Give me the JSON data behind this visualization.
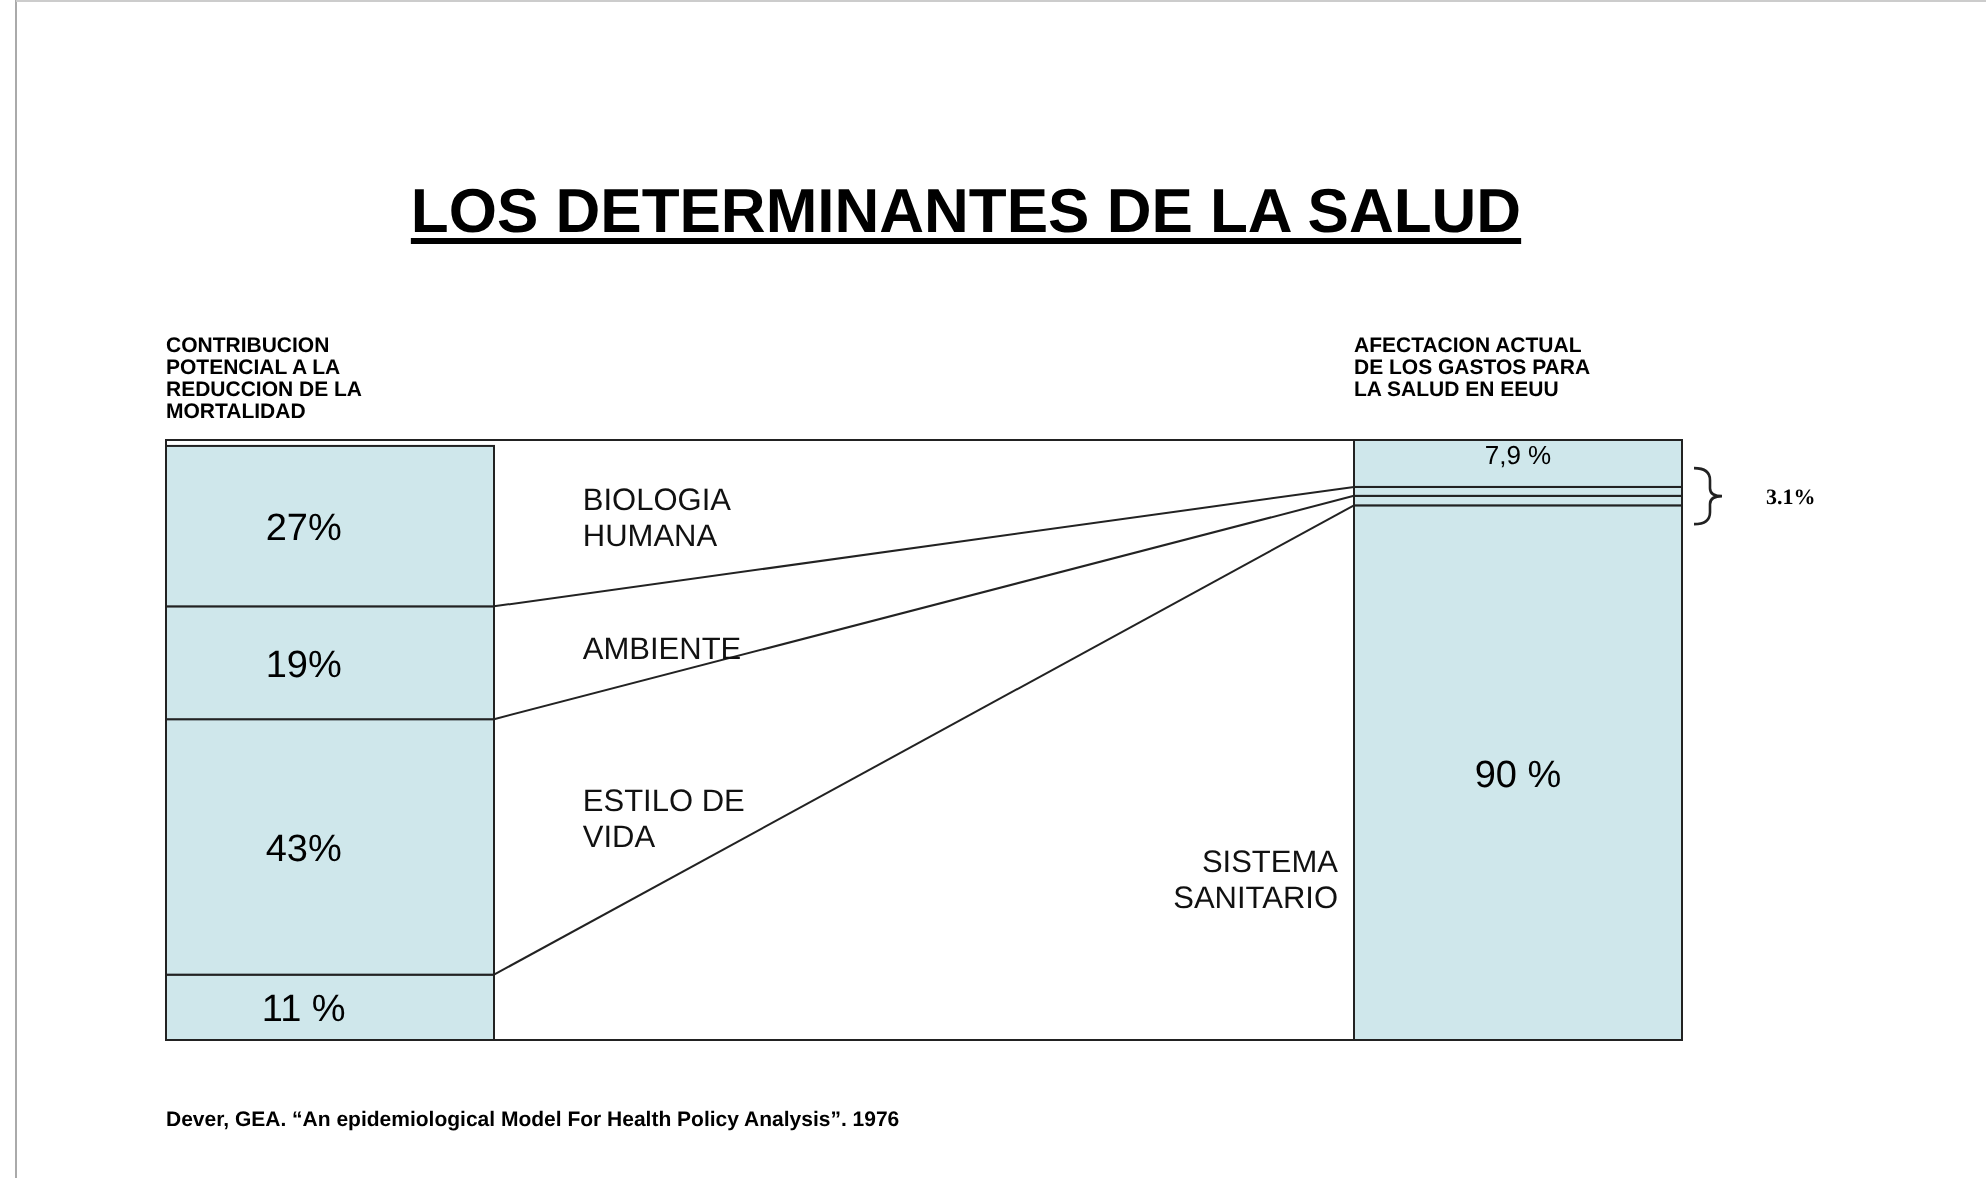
{
  "chart_data": {
    "type": "bar",
    "stacked": true,
    "title": "LOS DETERMINANTES DE LA SALUD",
    "categories": [
      "CONTRIBUCION POTENCIAL A LA REDUCCION DE LA MORTALIDAD",
      "AFECTACION ACTUAL DE LOS GASTOS PARA LA SALUD EN EEUU"
    ],
    "series": [
      {
        "name": "SISTEMA SANITARIO",
        "color": "#cfe7eb",
        "values": [
          11,
          90
        ],
        "value_labels": [
          "11 %",
          "90 %"
        ]
      },
      {
        "name": "ESTILO DE VIDA",
        "color": "#cfe7eb",
        "values": [
          43,
          1.6
        ],
        "value_labels": [
          "43%",
          null
        ]
      },
      {
        "name": "AMBIENTE",
        "color": "#cfe7eb",
        "values": [
          19,
          1.5
        ],
        "value_labels": [
          "19%",
          null
        ]
      },
      {
        "name": "BIOLOGIA HUMANA",
        "color": "#cfe7eb",
        "values": [
          27,
          7.9
        ],
        "value_labels": [
          "27%",
          "7,9 %"
        ]
      }
    ],
    "annotations": [
      "3.1%",
      "Dever, GEA. “An epidemiological Model For Health Policy Analysis”. 1976"
    ]
  }
}
